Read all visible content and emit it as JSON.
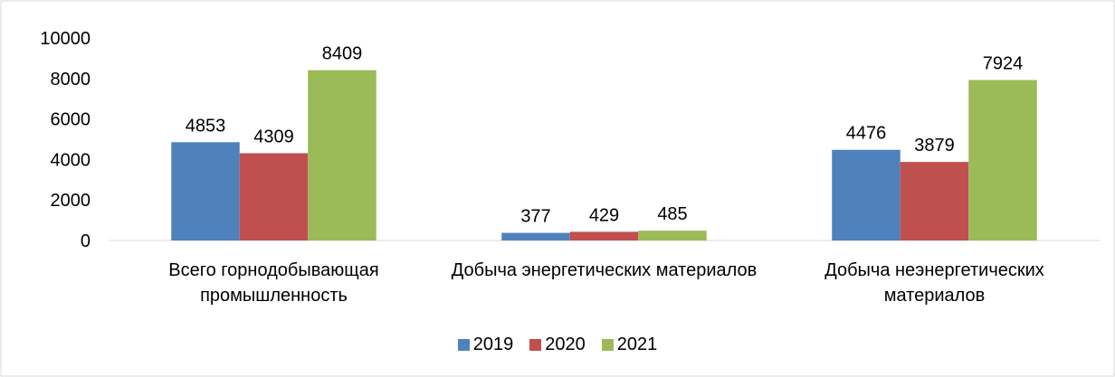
{
  "chart_data": {
    "type": "bar",
    "categories": [
      "Всего горнодобывающая промышленность",
      "Добыча энергетических материалов",
      "Добыча неэнергетических материалов"
    ],
    "series": [
      {
        "name": "2019",
        "color": "#4f81bd",
        "values": [
          4853,
          377,
          4476
        ]
      },
      {
        "name": "2020",
        "color": "#c0504d",
        "values": [
          4309,
          429,
          3879
        ]
      },
      {
        "name": "2021",
        "color": "#9bbb59",
        "values": [
          8409,
          485,
          7924
        ]
      }
    ],
    "ylim": [
      0,
      10000
    ],
    "yticks": [
      0,
      2000,
      4000,
      6000,
      8000,
      10000
    ],
    "grid": false,
    "legend": "bottom"
  }
}
